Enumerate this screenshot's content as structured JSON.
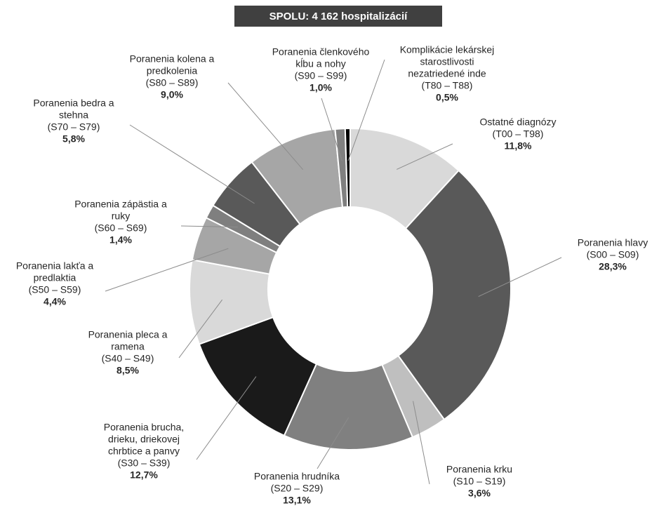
{
  "chart_data": {
    "type": "donut",
    "title": "SPOLU: 4 162 hospitalizácií",
    "categories": [
      [
        "Ostatné diagnózy"
      ],
      [
        "Poranenia hlavy"
      ],
      [
        "Poranenia krku"
      ],
      [
        "Poranenia hrudníka"
      ],
      [
        "Poranenia brucha,",
        "drieku, driekovej",
        "chrbtice a panvy"
      ],
      [
        "Poranenia pleca a",
        "ramena"
      ],
      [
        "Poranenia lakťa a",
        "predlaktia"
      ],
      [
        "Poranenia zápästia a",
        "ruky"
      ],
      [
        "Poranenia bedra a",
        "stehna"
      ],
      [
        "Poranenia kolena a",
        "predkolenia"
      ],
      [
        "Poranenia členkového",
        "kĺbu a nohy"
      ],
      [
        "Komplikácie lekárskej",
        "starostlivosti",
        "nezatriedené inde"
      ]
    ],
    "codes": [
      "(T00 – T98)",
      "(S00 – S09)",
      "(S10 – S19)",
      "(S20 – S29)",
      "(S30 – S39)",
      "(S40 – S49)",
      "(S50 – S59)",
      "(S60 – S69)",
      "(S70 – S79)",
      "(S80 – S89)",
      "(S90 – S99)",
      "(T80 – T88)"
    ],
    "values": [
      11.8,
      28.3,
      3.6,
      13.1,
      12.7,
      8.5,
      4.4,
      1.4,
      5.8,
      9.0,
      1.0,
      0.5
    ],
    "value_labels": [
      "11,8%",
      "28,3%",
      "3,6%",
      "13,1%",
      "12,7%",
      "8,5%",
      "4,4%",
      "1,4%",
      "5,8%",
      "9,0%",
      "1,0%",
      "0,5%"
    ],
    "colors": [
      "#d9d9d9",
      "#595959",
      "#bfbfbf",
      "#808080",
      "#1a1a1a",
      "#d9d9d9",
      "#a6a6a6",
      "#7f7f7f",
      "#595959",
      "#a6a6a6",
      "#808080",
      "#000000"
    ]
  }
}
